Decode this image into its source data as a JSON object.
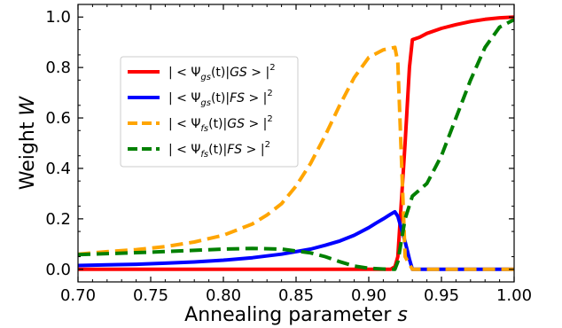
{
  "chart_data": {
    "type": "line",
    "xlabel": "Annealing parameter",
    "xlabel_var": "s",
    "ylabel": "Weight",
    "ylabel_var": "W",
    "xlim": [
      0.7,
      1.0
    ],
    "ylim": [
      -0.05,
      1.05
    ],
    "xticks": [
      "0.70",
      "0.75",
      "0.80",
      "0.85",
      "0.90",
      "0.95",
      "1.00"
    ],
    "xtick_values": [
      0.7,
      0.75,
      0.8,
      0.85,
      0.9,
      0.95,
      1.0
    ],
    "yticks": [
      "0.0",
      "0.2",
      "0.4",
      "0.6",
      "0.8",
      "1.0"
    ],
    "ytick_values": [
      0.0,
      0.2,
      0.4,
      0.6,
      0.8,
      1.0
    ],
    "grid": false,
    "legend_position": "upper-left",
    "series": [
      {
        "name": "|<Ψgs(t)|GS>|²",
        "legend": {
          "pre": "| < Ψ",
          "sub": "gs",
          "mid": "(t)|",
          "state": "GS",
          "post": " > |",
          "sup": "2"
        },
        "color": "#ff0000",
        "dash": "solid",
        "x": [
          0.7,
          0.75,
          0.8,
          0.85,
          0.9,
          0.915,
          0.918,
          0.92,
          0.925,
          0.928,
          0.93,
          0.935,
          0.94,
          0.95,
          0.96,
          0.97,
          0.98,
          0.99,
          1.0
        ],
        "y": [
          0.0,
          0.0,
          0.0,
          0.0,
          0.0,
          0.0,
          0.01,
          0.05,
          0.5,
          0.8,
          0.91,
          0.92,
          0.935,
          0.955,
          0.97,
          0.982,
          0.991,
          0.997,
          1.0
        ]
      },
      {
        "name": "|<Ψgs(t)|FS>|²",
        "legend": {
          "pre": "| < Ψ",
          "sub": "gs",
          "mid": "(t)|",
          "state": "FS",
          "post": " > |",
          "sup": "2"
        },
        "color": "#0000ff",
        "dash": "solid",
        "x": [
          0.7,
          0.72,
          0.74,
          0.76,
          0.78,
          0.8,
          0.82,
          0.84,
          0.86,
          0.87,
          0.88,
          0.89,
          0.9,
          0.905,
          0.91,
          0.915,
          0.918,
          0.92,
          0.925,
          0.928,
          0.93,
          0.95,
          1.0
        ],
        "y": [
          0.015,
          0.018,
          0.02,
          0.024,
          0.029,
          0.036,
          0.046,
          0.06,
          0.08,
          0.095,
          0.112,
          0.135,
          0.165,
          0.183,
          0.2,
          0.218,
          0.228,
          0.21,
          0.11,
          0.04,
          0.0,
          0.0,
          0.0
        ]
      },
      {
        "name": "|<Ψfs(t)|GS>|²",
        "legend": {
          "pre": "| < Ψ",
          "sub": "fs",
          "mid": "(t)|",
          "state": "GS",
          "post": " > |",
          "sup": "2"
        },
        "color": "#ffa500",
        "dash": "dashed",
        "x": [
          0.7,
          0.72,
          0.74,
          0.76,
          0.78,
          0.8,
          0.82,
          0.83,
          0.84,
          0.85,
          0.86,
          0.87,
          0.88,
          0.89,
          0.9,
          0.91,
          0.918,
          0.92,
          0.925,
          0.93,
          0.95,
          1.0
        ],
        "y": [
          0.06,
          0.07,
          0.078,
          0.09,
          0.108,
          0.135,
          0.18,
          0.215,
          0.26,
          0.33,
          0.42,
          0.53,
          0.65,
          0.76,
          0.84,
          0.87,
          0.88,
          0.82,
          0.05,
          0.0,
          0.0,
          0.0
        ]
      },
      {
        "name": "|<Ψfs(t)|FS>|²",
        "legend": {
          "pre": "| < Ψ",
          "sub": "fs",
          "mid": "(t)|",
          "state": "FS",
          "post": " > |",
          "sup": "2"
        },
        "color": "#008000",
        "dash": "dashed",
        "x": [
          0.7,
          0.75,
          0.8,
          0.82,
          0.84,
          0.86,
          0.87,
          0.88,
          0.89,
          0.9,
          0.91,
          0.915,
          0.918,
          0.92,
          0.925,
          0.93,
          0.94,
          0.95,
          0.96,
          0.97,
          0.98,
          0.99,
          1.0
        ],
        "y": [
          0.058,
          0.068,
          0.08,
          0.083,
          0.08,
          0.065,
          0.05,
          0.03,
          0.013,
          0.004,
          0.001,
          0.0,
          0.0,
          0.03,
          0.2,
          0.29,
          0.34,
          0.45,
          0.6,
          0.75,
          0.88,
          0.96,
          0.99
        ]
      }
    ]
  }
}
